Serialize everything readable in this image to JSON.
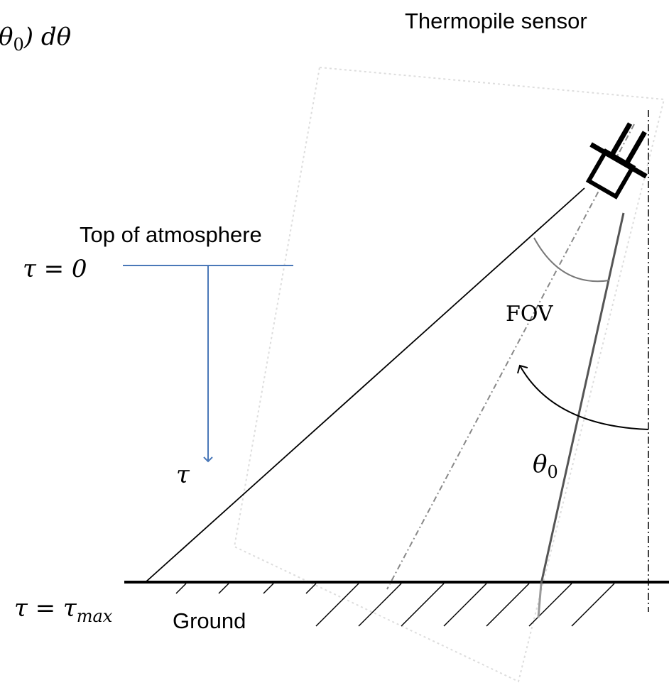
{
  "formula": {
    "symbol": "θ",
    "sub": "0",
    "rest": ") dθ"
  },
  "sensor_label": "Thermopile sensor",
  "top_label": "Top of atmosphere",
  "tau_zero": "τ = 0",
  "tau_arrow": "τ",
  "fov_label": "FOV",
  "angle_label": {
    "symbol": "θ",
    "sub": "0"
  },
  "tau_max": {
    "main": "τ = τ",
    "sub": "max"
  },
  "ground_label": "Ground"
}
